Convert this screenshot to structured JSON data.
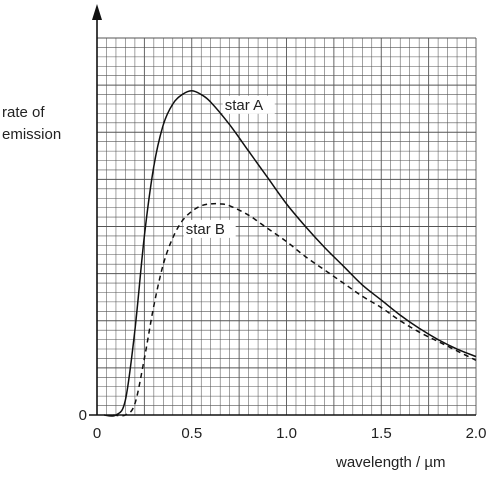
{
  "chart_data": {
    "type": "line",
    "title": "",
    "ylabel_lines": [
      "rate of",
      "emission"
    ],
    "xlabel": "wavelength / µm",
    "xlim": [
      0,
      2.0
    ],
    "ylim": [
      0,
      20
    ],
    "x_ticks": [
      "0",
      "0.5",
      "1.0",
      "1.5",
      "2.0"
    ],
    "y_ticks": [
      "0"
    ],
    "grid": true,
    "series": [
      {
        "name": "star A",
        "style": "solid",
        "x": [
          0.1,
          0.15,
          0.2,
          0.25,
          0.3,
          0.35,
          0.4,
          0.45,
          0.5,
          0.55,
          0.6,
          0.7,
          0.8,
          0.9,
          1.0,
          1.1,
          1.2,
          1.3,
          1.4,
          1.5,
          1.6,
          1.7,
          1.8,
          1.9,
          2.0
        ],
        "y": [
          0.0,
          0.8,
          4.5,
          9.5,
          13.2,
          15.4,
          16.5,
          17.0,
          17.2,
          17.0,
          16.6,
          15.4,
          14.0,
          12.6,
          11.2,
          10.0,
          8.9,
          7.9,
          6.9,
          6.1,
          5.3,
          4.6,
          4.0,
          3.5,
          3.1
        ]
      },
      {
        "name": "star B",
        "style": "dashed",
        "x": [
          0.15,
          0.2,
          0.25,
          0.3,
          0.35,
          0.4,
          0.45,
          0.5,
          0.55,
          0.6,
          0.65,
          0.7,
          0.8,
          0.9,
          1.0,
          1.1,
          1.2,
          1.3,
          1.4,
          1.5,
          1.6,
          1.7,
          1.8,
          1.9,
          2.0
        ],
        "y": [
          0.0,
          0.6,
          3.0,
          5.8,
          8.0,
          9.4,
          10.3,
          10.8,
          11.1,
          11.2,
          11.2,
          11.1,
          10.6,
          9.9,
          9.2,
          8.4,
          7.7,
          7.0,
          6.3,
          5.7,
          5.0,
          4.4,
          3.9,
          3.4,
          2.9
        ]
      }
    ]
  }
}
